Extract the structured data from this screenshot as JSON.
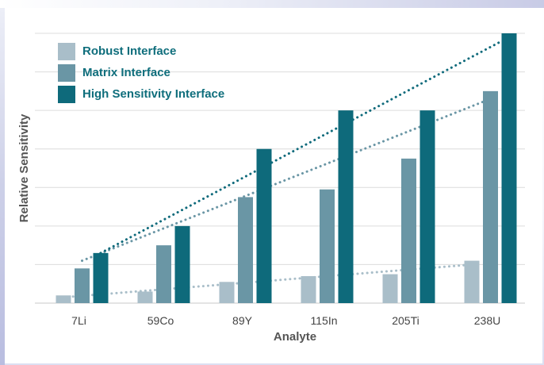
{
  "chart_data": {
    "type": "bar",
    "title": "",
    "xlabel": "Analyte",
    "ylabel": "Relative Sensitivity",
    "categories": [
      "7Li",
      "59Co",
      "89Y",
      "115In",
      "205Ti",
      "238U"
    ],
    "ylim": [
      0,
      7
    ],
    "grid": true,
    "y_tick_labels_shown": false,
    "legend_position": "top-left",
    "series": [
      {
        "name": "Robust Interface",
        "color": "#a9bec9",
        "values": [
          0.2,
          0.3,
          0.55,
          0.7,
          0.75,
          1.1
        ]
      },
      {
        "name": "Matrix Interface",
        "color": "#6a96a5",
        "values": [
          0.9,
          1.5,
          2.75,
          2.95,
          3.75,
          5.5
        ]
      },
      {
        "name": "High Sensitivity Interface",
        "color": "#0e6a7b",
        "values": [
          1.3,
          2.0,
          4.0,
          5.0,
          5.0,
          7.0
        ]
      }
    ],
    "trendlines": [
      {
        "series": "Robust Interface",
        "style": "dotted",
        "start": 0.15,
        "end": 1.0
      },
      {
        "series": "Matrix Interface",
        "style": "dotted",
        "start": 1.1,
        "end": 5.3
      },
      {
        "series": "High Sensitivity Interface",
        "style": "dotted",
        "start": 1.3,
        "end": 6.9
      }
    ]
  }
}
